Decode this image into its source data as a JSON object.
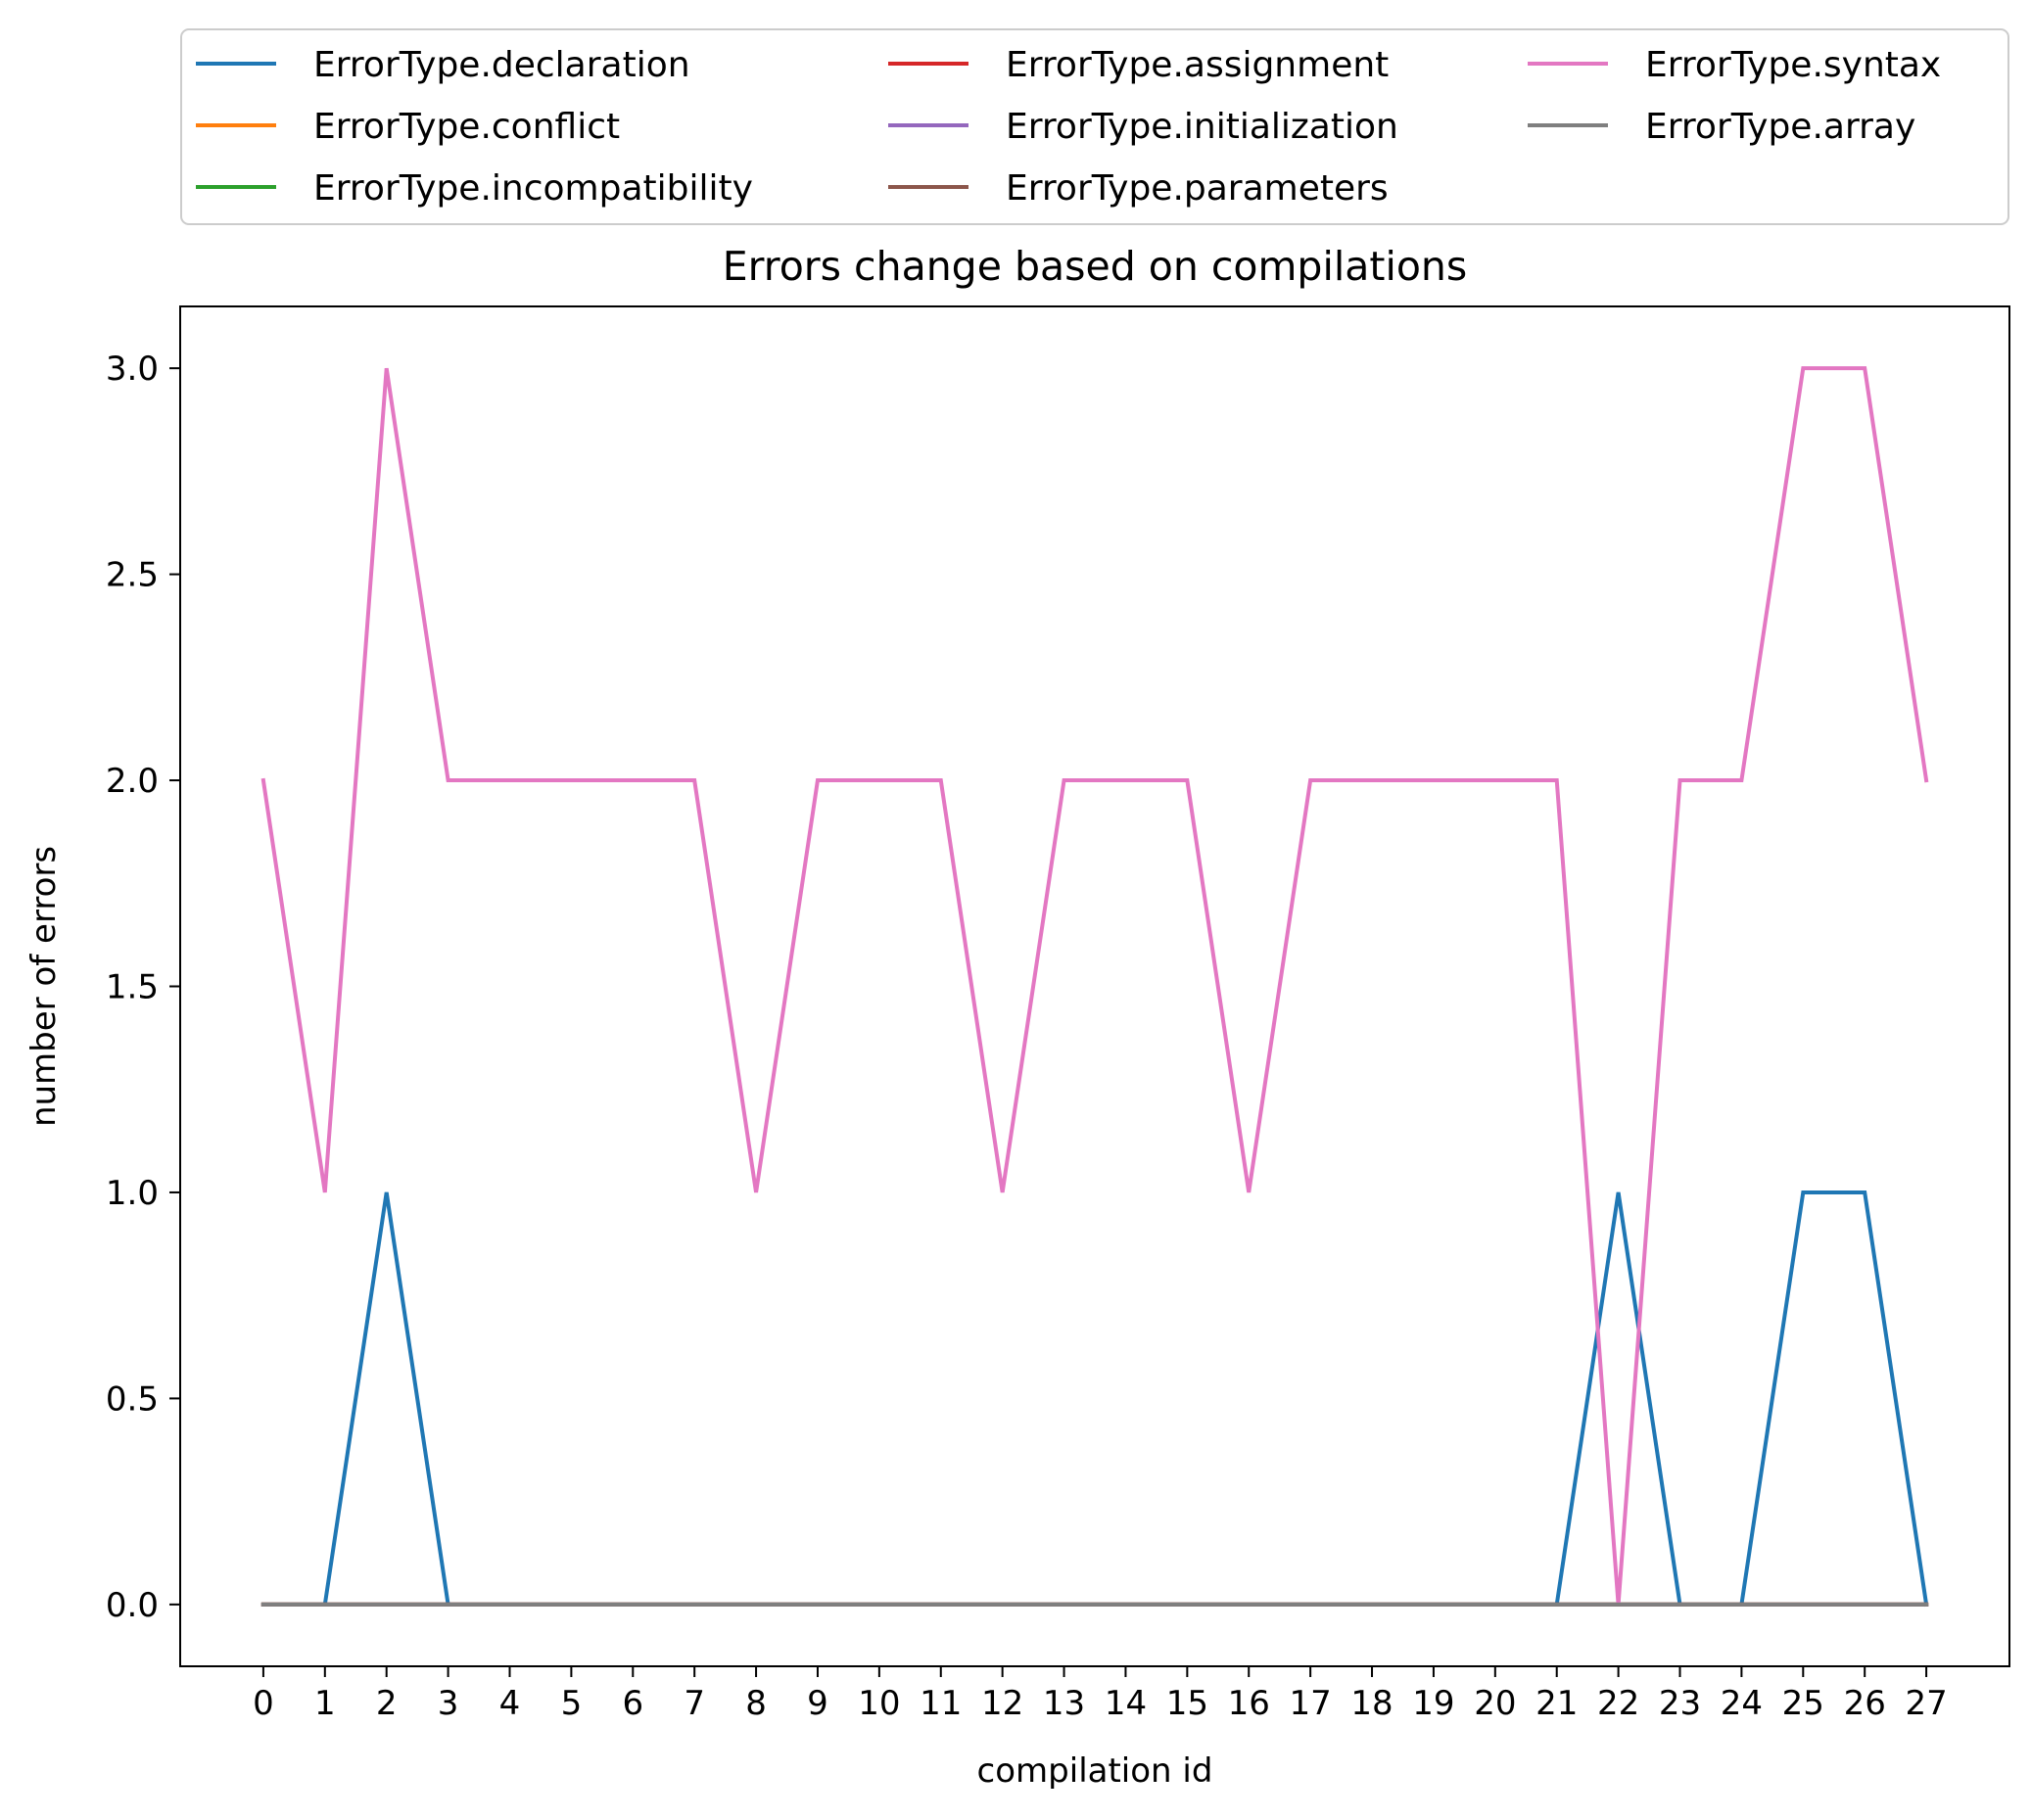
{
  "chart_data": {
    "type": "line",
    "title": "Errors change based on compilations",
    "xlabel": "compilation id",
    "ylabel": "number of errors",
    "xlim": [
      -1.35,
      28.35
    ],
    "ylim": [
      -0.15,
      3.15
    ],
    "x_ticks": [
      0,
      1,
      2,
      3,
      4,
      5,
      6,
      7,
      8,
      9,
      10,
      11,
      12,
      13,
      14,
      15,
      16,
      17,
      18,
      19,
      20,
      21,
      22,
      23,
      24,
      25,
      26,
      27
    ],
    "y_ticks": [
      0.0,
      0.5,
      1.0,
      1.5,
      2.0,
      2.5,
      3.0
    ],
    "y_tick_labels": [
      "0.0",
      "0.5",
      "1.0",
      "1.5",
      "2.0",
      "2.5",
      "3.0"
    ],
    "grid": false,
    "legend_position": "top (outside, above plot), 3 columns",
    "x": [
      0,
      1,
      2,
      3,
      4,
      5,
      6,
      7,
      8,
      9,
      10,
      11,
      12,
      13,
      14,
      15,
      16,
      17,
      18,
      19,
      20,
      21,
      22,
      23,
      24,
      25,
      26,
      27
    ],
    "series": [
      {
        "name": "ErrorType.declaration",
        "color": "#1f77b4",
        "values": [
          0,
          0,
          1,
          0,
          0,
          0,
          0,
          0,
          0,
          0,
          0,
          0,
          0,
          0,
          0,
          0,
          0,
          0,
          0,
          0,
          0,
          0,
          1,
          0,
          0,
          1,
          1,
          0
        ]
      },
      {
        "name": "ErrorType.conflict",
        "color": "#ff7f0e",
        "values": [
          0,
          0,
          0,
          0,
          0,
          0,
          0,
          0,
          0,
          0,
          0,
          0,
          0,
          0,
          0,
          0,
          0,
          0,
          0,
          0,
          0,
          0,
          0,
          0,
          0,
          0,
          0,
          0
        ]
      },
      {
        "name": "ErrorType.incompatibility",
        "color": "#2ca02c",
        "values": [
          0,
          0,
          0,
          0,
          0,
          0,
          0,
          0,
          0,
          0,
          0,
          0,
          0,
          0,
          0,
          0,
          0,
          0,
          0,
          0,
          0,
          0,
          0,
          0,
          0,
          0,
          0,
          0
        ]
      },
      {
        "name": "ErrorType.assignment",
        "color": "#d62728",
        "values": [
          0,
          0,
          0,
          0,
          0,
          0,
          0,
          0,
          0,
          0,
          0,
          0,
          0,
          0,
          0,
          0,
          0,
          0,
          0,
          0,
          0,
          0,
          0,
          0,
          0,
          0,
          0,
          0
        ]
      },
      {
        "name": "ErrorType.initialization",
        "color": "#9467bd",
        "values": [
          0,
          0,
          0,
          0,
          0,
          0,
          0,
          0,
          0,
          0,
          0,
          0,
          0,
          0,
          0,
          0,
          0,
          0,
          0,
          0,
          0,
          0,
          0,
          0,
          0,
          0,
          0,
          0
        ]
      },
      {
        "name": "ErrorType.parameters",
        "color": "#8c564b",
        "values": [
          0,
          0,
          0,
          0,
          0,
          0,
          0,
          0,
          0,
          0,
          0,
          0,
          0,
          0,
          0,
          0,
          0,
          0,
          0,
          0,
          0,
          0,
          0,
          0,
          0,
          0,
          0,
          0
        ]
      },
      {
        "name": "ErrorType.syntax",
        "color": "#e377c2",
        "values": [
          2,
          1,
          3,
          2,
          2,
          2,
          2,
          2,
          1,
          2,
          2,
          2,
          1,
          2,
          2,
          2,
          1,
          2,
          2,
          2,
          2,
          2,
          0,
          2,
          2,
          3,
          3,
          2
        ]
      },
      {
        "name": "ErrorType.array",
        "color": "#7f7f7f",
        "values": [
          0,
          0,
          0,
          0,
          0,
          0,
          0,
          0,
          0,
          0,
          0,
          0,
          0,
          0,
          0,
          0,
          0,
          0,
          0,
          0,
          0,
          0,
          0,
          0,
          0,
          0,
          0,
          0
        ]
      }
    ]
  }
}
